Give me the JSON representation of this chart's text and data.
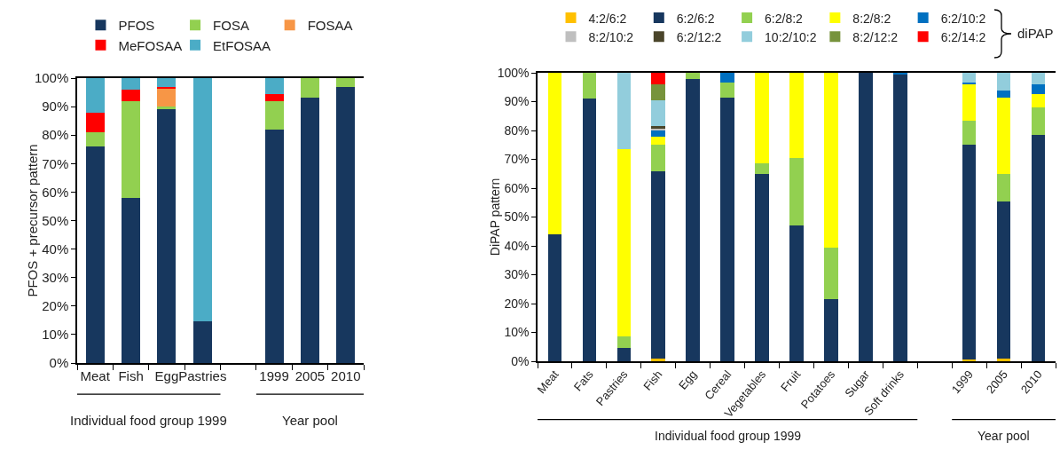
{
  "chart_data": [
    {
      "type": "bar",
      "stacked": true,
      "ylabel": "PFOS + precursor pattern",
      "legend": "top",
      "grid": false,
      "categories": [
        "Meat",
        "Fish",
        "Egg",
        "Pastries",
        null,
        "1999",
        "2005",
        "2010"
      ],
      "series": [
        {
          "name": "PFOS",
          "color": "#17375e",
          "values": [
            76,
            58,
            89,
            14.5,
            null,
            82,
            93,
            97
          ]
        },
        {
          "name": "FOSA",
          "color": "#92d050",
          "values": [
            5,
            34,
            1,
            0,
            null,
            10,
            7,
            3
          ]
        },
        {
          "name": "FOSAA",
          "color": "#f79646",
          "values": [
            0,
            0,
            6.5,
            0,
            null,
            0,
            0,
            0
          ]
        },
        {
          "name": "MeFOSAA",
          "color": "#ff0000",
          "values": [
            7,
            4,
            0.5,
            0,
            null,
            2.5,
            0,
            0
          ]
        },
        {
          "name": "EtFOSAA",
          "color": "#4bacc6",
          "values": [
            12,
            4,
            3,
            85.5,
            null,
            5.5,
            0,
            0
          ]
        }
      ],
      "ylim": [
        0,
        100
      ],
      "yticks": [
        {
          "value": 0,
          "label": "0%"
        },
        {
          "value": 10,
          "label": "10%"
        },
        {
          "value": 20,
          "label": "20%"
        },
        {
          "value": 30,
          "label": "30%"
        },
        {
          "value": 40,
          "label": "40%"
        },
        {
          "value": 50,
          "label": "50%"
        },
        {
          "value": 60,
          "label": "60%"
        },
        {
          "value": 70,
          "label": "70%"
        },
        {
          "value": 80,
          "label": "80%"
        },
        {
          "value": 90,
          "label": "90%"
        },
        {
          "value": 100,
          "label": "100%"
        }
      ],
      "annotations": [
        "Individual food group 1999",
        "Year pool"
      ]
    },
    {
      "type": "bar",
      "stacked": true,
      "ylabel": "DiPAP pattern",
      "legend": "top",
      "grid": false,
      "legend_title": "diPAP",
      "categories": [
        "Meat",
        "Fats",
        "Pastries",
        "Fish",
        "Egg",
        "Cereal",
        "Vegetables",
        "Fruit",
        "Potatoes",
        "Sugar",
        "Soft drinks",
        null,
        "1999",
        "2005",
        "2010"
      ],
      "series": [
        {
          "name": "4:2/6:2",
          "color": "#ffc000",
          "values": [
            0,
            0,
            0,
            1,
            0,
            0,
            0,
            0,
            0,
            0,
            0,
            null,
            0.5,
            1,
            0
          ]
        },
        {
          "name": "6:2/6:2",
          "color": "#17375e",
          "values": [
            44,
            91,
            4.5,
            65,
            98,
            91.5,
            65,
            47,
            21.5,
            100,
            99.5,
            null,
            74.5,
            54.5,
            78.5
          ]
        },
        {
          "name": "6:2/8:2",
          "color": "#92d050",
          "values": [
            0,
            9,
            4,
            9,
            2,
            5,
            3.5,
            23.5,
            18,
            0,
            0,
            null,
            8.5,
            9.5,
            9.5
          ]
        },
        {
          "name": "8:2/8:2",
          "color": "#ffff00",
          "values": [
            56,
            0,
            65,
            3,
            0,
            0,
            31.5,
            29.5,
            60.5,
            0,
            0,
            null,
            12.5,
            26.5,
            4.5
          ]
        },
        {
          "name": "6:2/10:2",
          "color": "#0070c0",
          "values": [
            0,
            0,
            0,
            2,
            0,
            3.5,
            0,
            0,
            0,
            0,
            0.5,
            null,
            0.5,
            2.5,
            3.5
          ]
        },
        {
          "name": "8:2/10:2",
          "color": "#bfbfbf",
          "values": [
            0,
            0,
            0,
            0.5,
            0,
            0,
            0,
            0,
            0,
            0,
            0,
            null,
            0,
            0,
            0
          ]
        },
        {
          "name": "6:2/12:2",
          "color": "#4a452a",
          "values": [
            0,
            0,
            0,
            1,
            0,
            0,
            0,
            0,
            0,
            0,
            0,
            null,
            0,
            0,
            0
          ]
        },
        {
          "name": "10:2/10:2",
          "color": "#92cddc",
          "values": [
            0,
            0,
            26.5,
            9,
            0,
            0,
            0,
            0,
            0,
            0,
            0,
            null,
            3.5,
            6,
            4
          ]
        },
        {
          "name": "8:2/12:2",
          "color": "#77933c",
          "values": [
            0,
            0,
            0,
            5.5,
            0,
            0,
            0,
            0,
            0,
            0,
            0,
            null,
            0,
            0,
            0
          ]
        },
        {
          "name": "6:2/14:2",
          "color": "#ff0000",
          "values": [
            0,
            0,
            0,
            4,
            0,
            0,
            0,
            0,
            0,
            0,
            0,
            null,
            0,
            0,
            0
          ]
        }
      ],
      "ylim": [
        0,
        100
      ],
      "yticks": [
        {
          "value": 0,
          "label": "0%"
        },
        {
          "value": 10,
          "label": "10%"
        },
        {
          "value": 20,
          "label": "20%"
        },
        {
          "value": 30,
          "label": "30%"
        },
        {
          "value": 40,
          "label": "40%"
        },
        {
          "value": 50,
          "label": "50%"
        },
        {
          "value": 60,
          "label": "60%"
        },
        {
          "value": 70,
          "label": "70%"
        },
        {
          "value": 80,
          "label": "80%"
        },
        {
          "value": 90,
          "label": "90%"
        },
        {
          "value": 100,
          "label": "100%"
        }
      ],
      "annotations": [
        "Individual food group 1999",
        "Year pool"
      ]
    }
  ]
}
